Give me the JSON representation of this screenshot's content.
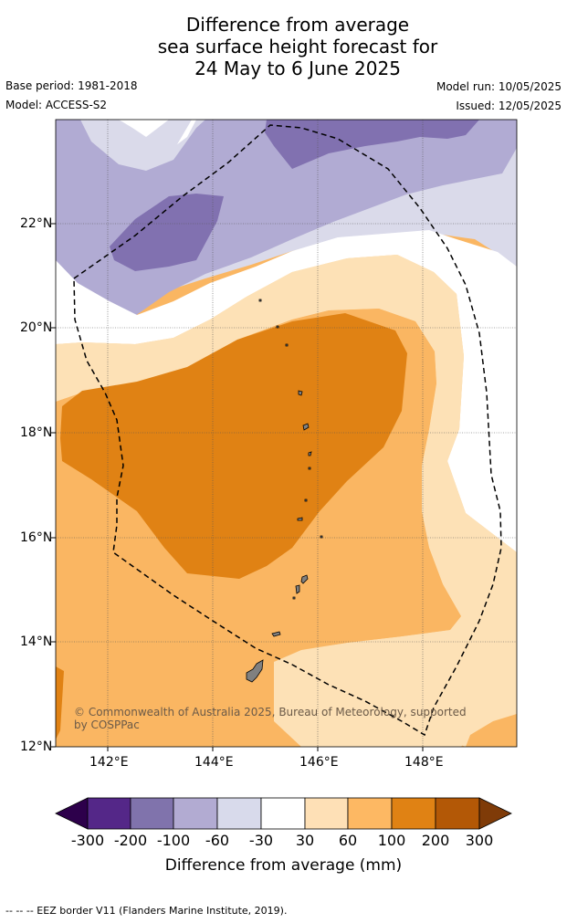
{
  "title": {
    "line1": "Difference from average",
    "line2": "sea surface height forecast for",
    "line3": "24 May to 6 June 2025"
  },
  "meta": {
    "base_period": "Base period: 1981-2018",
    "model": "Model: ACCESS-S2",
    "model_run": "Model run: 10/05/2025",
    "issued": "Issued: 12/05/2025"
  },
  "map": {
    "lat_labels": [
      "22°N",
      "20°N",
      "18°N",
      "16°N",
      "14°N",
      "12°N"
    ],
    "lon_labels": [
      "142°E",
      "144°E",
      "146°E",
      "148°E"
    ],
    "copyright": "© Commonwealth of Australia 2025, Bureau of Meteorology, supported by COSPPac",
    "layer_colors": [
      "#dadaea",
      "#b1abd3",
      "#8171b0",
      "#fde1b6",
      "#fab662",
      "#e08214"
    ],
    "land_color": "#808080",
    "eez_style": "dashed black"
  },
  "colorbar": {
    "ticks": [
      "-300",
      "-200",
      "-100",
      "-60",
      "-30",
      "30",
      "60",
      "100",
      "200",
      "300"
    ],
    "colors": [
      "#2d004b",
      "#542788",
      "#8073ac",
      "#b2abd2",
      "#d8daeb",
      "#ffffff",
      "#fee0b6",
      "#fdb863",
      "#e08214",
      "#b35806",
      "#7f3b08"
    ],
    "label": "Difference from average (mm)"
  },
  "footnote": "--  --  -- EEZ border V11 (Flanders Marine Institute, 2019)."
}
